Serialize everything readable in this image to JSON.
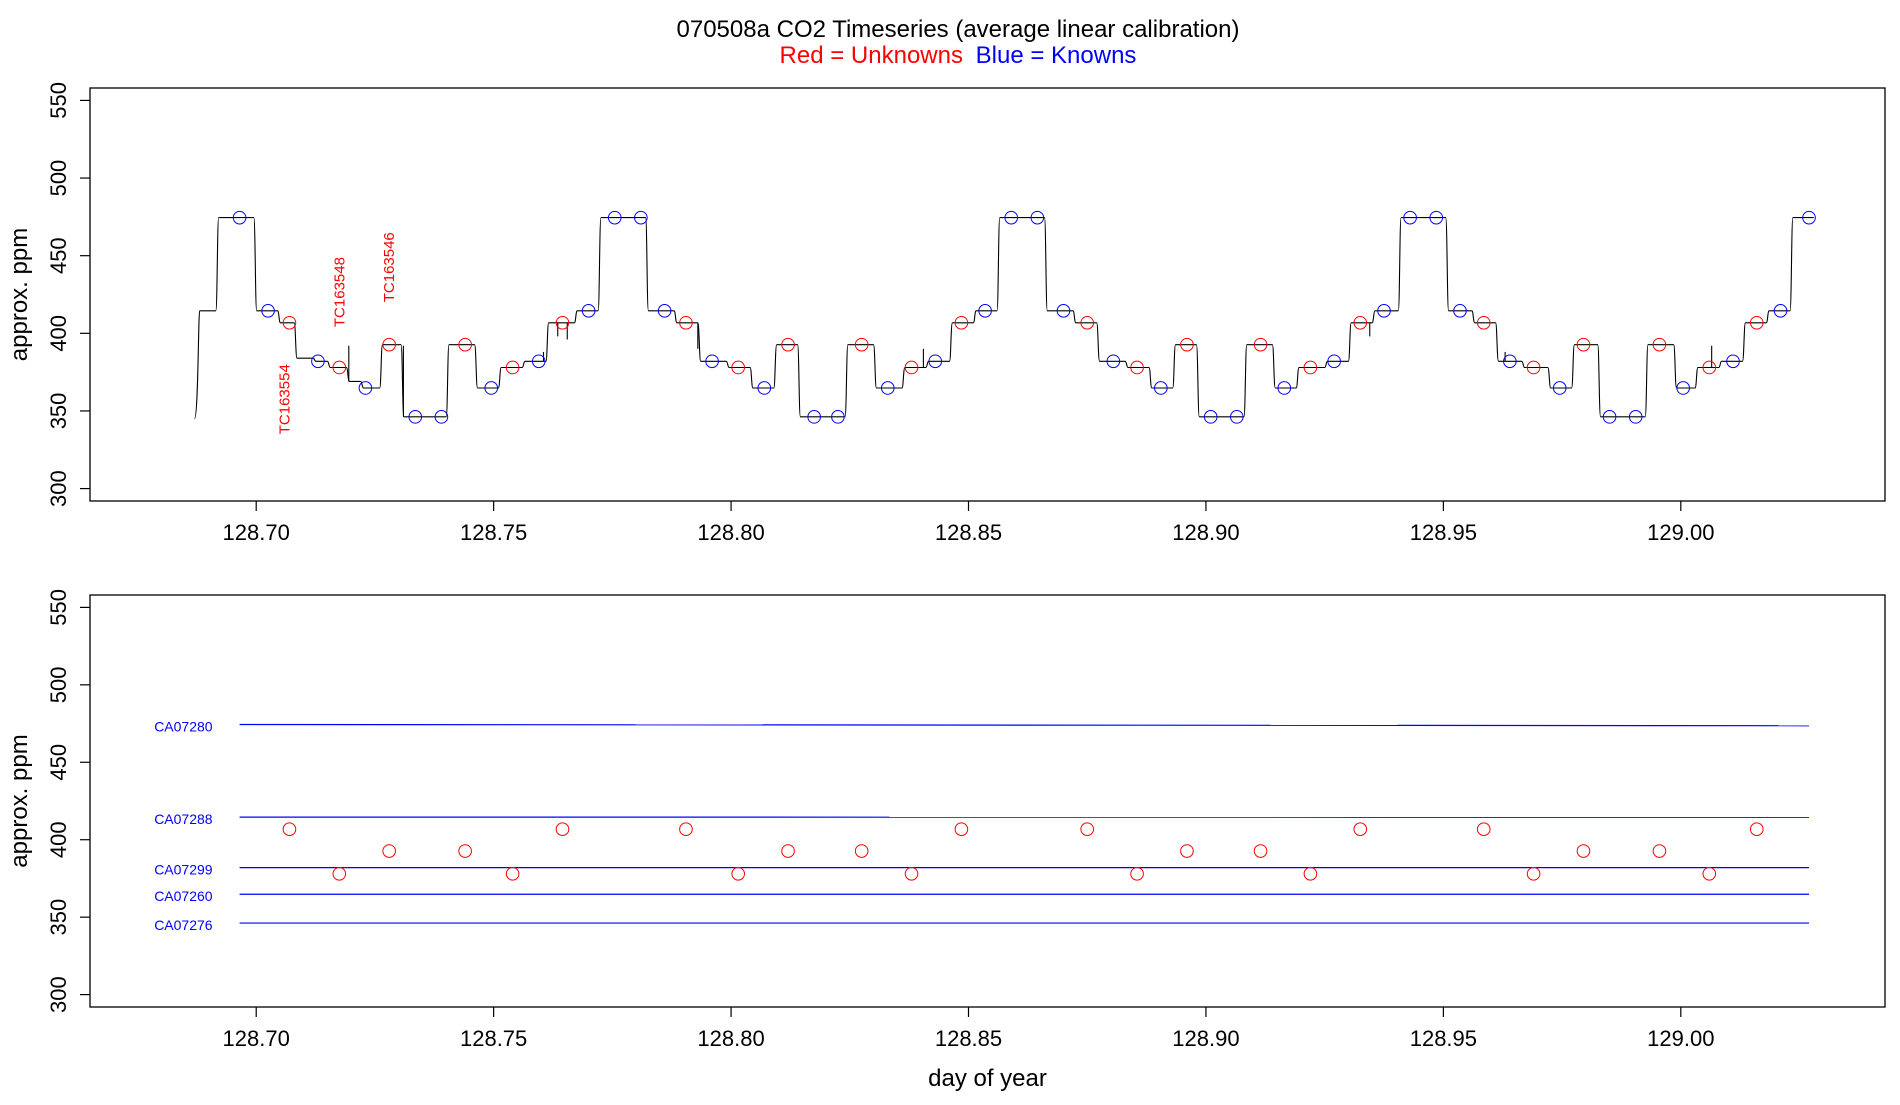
{
  "figure": {
    "title": "070508a   CO2 Timeseries (average linear calibration)",
    "subtitle_red": "Red = Unknowns",
    "subtitle_blue": "Blue = Knowns",
    "colors": {
      "unknowns": "#ff0000",
      "knowns": "#0000ff",
      "trace": "#000000",
      "frame": "#000000"
    }
  },
  "chart_data": [
    {
      "type": "line",
      "xlabel": "",
      "ylabel": "approx. ppm",
      "xlim": [
        128.665,
        129.043
      ],
      "ylim": [
        292,
        558
      ],
      "x_ticks": [
        "128.70",
        "128.75",
        "128.80",
        "128.85",
        "128.90",
        "128.95",
        "129.00"
      ],
      "y_ticks": [
        "300",
        "350",
        "400",
        "450",
        "500",
        "550"
      ],
      "grid": false,
      "trace_steps": [
        {
          "start": 128.6875,
          "end": 128.6915,
          "y": 414.5
        },
        {
          "start": 128.6915,
          "end": 128.6995,
          "y": 474.5
        },
        {
          "start": 128.6995,
          "end": 128.7045,
          "y": 414.5
        },
        {
          "start": 128.7045,
          "end": 128.708,
          "y": 406.8
        },
        {
          "start": 128.708,
          "end": 128.712,
          "y": 384.0
        },
        {
          "start": 128.712,
          "end": 128.715,
          "y": 382.0
        },
        {
          "start": 128.715,
          "end": 128.719,
          "y": 378.0
        },
        {
          "start": 128.719,
          "end": 128.722,
          "y": 369.0
        },
        {
          "start": 128.722,
          "end": 128.726,
          "y": 364.8
        },
        {
          "start": 128.726,
          "end": 128.7305,
          "y": 392.7
        },
        {
          "start": 128.7305,
          "end": 128.74,
          "y": 346.2
        },
        {
          "start": 128.74,
          "end": 128.746,
          "y": 392.7
        },
        {
          "start": 128.746,
          "end": 128.751,
          "y": 364.8
        },
        {
          "start": 128.751,
          "end": 128.756,
          "y": 378.0
        },
        {
          "start": 128.756,
          "end": 128.761,
          "y": 382.0
        },
        {
          "start": 128.761,
          "end": 128.767,
          "y": 406.8
        },
        {
          "start": 128.767,
          "end": 128.772,
          "y": 414.5
        },
        {
          "start": 128.772,
          "end": 128.782,
          "y": 474.5
        },
        {
          "start": 128.782,
          "end": 128.788,
          "y": 414.5
        },
        {
          "start": 128.788,
          "end": 128.793,
          "y": 406.8
        },
        {
          "start": 128.793,
          "end": 128.799,
          "y": 382.0
        },
        {
          "start": 128.799,
          "end": 128.804,
          "y": 378.0
        },
        {
          "start": 128.804,
          "end": 128.809,
          "y": 364.8
        },
        {
          "start": 128.809,
          "end": 128.814,
          "y": 392.7
        },
        {
          "start": 128.814,
          "end": 128.824,
          "y": 346.2
        },
        {
          "start": 128.824,
          "end": 128.83,
          "y": 392.7
        },
        {
          "start": 128.83,
          "end": 128.836,
          "y": 364.8
        },
        {
          "start": 128.836,
          "end": 128.841,
          "y": 378.0
        },
        {
          "start": 128.841,
          "end": 128.846,
          "y": 382.0
        },
        {
          "start": 128.846,
          "end": 128.851,
          "y": 406.8
        },
        {
          "start": 128.851,
          "end": 128.856,
          "y": 414.5
        },
        {
          "start": 128.856,
          "end": 128.866,
          "y": 474.5
        },
        {
          "start": 128.866,
          "end": 128.872,
          "y": 414.5
        },
        {
          "start": 128.872,
          "end": 128.877,
          "y": 406.8
        },
        {
          "start": 128.877,
          "end": 128.883,
          "y": 382.0
        },
        {
          "start": 128.883,
          "end": 128.888,
          "y": 378.0
        },
        {
          "start": 128.888,
          "end": 128.893,
          "y": 364.8
        },
        {
          "start": 128.893,
          "end": 128.898,
          "y": 392.7
        },
        {
          "start": 128.898,
          "end": 128.908,
          "y": 346.2
        },
        {
          "start": 128.908,
          "end": 128.914,
          "y": 392.7
        },
        {
          "start": 128.914,
          "end": 128.919,
          "y": 364.8
        },
        {
          "start": 128.919,
          "end": 128.925,
          "y": 378.0
        },
        {
          "start": 128.925,
          "end": 128.93,
          "y": 382.0
        },
        {
          "start": 128.93,
          "end": 128.935,
          "y": 406.8
        },
        {
          "start": 128.935,
          "end": 128.9405,
          "y": 414.5
        },
        {
          "start": 128.9405,
          "end": 128.9505,
          "y": 474.5
        },
        {
          "start": 128.9505,
          "end": 128.956,
          "y": 414.5
        },
        {
          "start": 128.956,
          "end": 128.961,
          "y": 406.8
        },
        {
          "start": 128.961,
          "end": 128.9665,
          "y": 382.0
        },
        {
          "start": 128.9665,
          "end": 128.972,
          "y": 378.0
        },
        {
          "start": 128.972,
          "end": 128.977,
          "y": 364.8
        },
        {
          "start": 128.977,
          "end": 128.9825,
          "y": 392.7
        },
        {
          "start": 128.9825,
          "end": 128.9925,
          "y": 346.2
        },
        {
          "start": 128.9925,
          "end": 128.9985,
          "y": 392.7
        },
        {
          "start": 128.9985,
          "end": 129.003,
          "y": 364.8
        },
        {
          "start": 129.003,
          "end": 129.008,
          "y": 378.0
        },
        {
          "start": 129.008,
          "end": 129.013,
          "y": 382.0
        },
        {
          "start": 129.013,
          "end": 129.018,
          "y": 406.8
        },
        {
          "start": 129.018,
          "end": 129.023,
          "y": 414.5
        },
        {
          "start": 129.023,
          "end": 129.028,
          "y": 474.5
        }
      ],
      "trace_start": {
        "x": 128.687,
        "y": 345.0
      },
      "spikes": [
        {
          "x": 128.7195,
          "y": 392
        },
        {
          "x": 128.731,
          "y": 392
        },
        {
          "x": 128.7605,
          "y": 388
        },
        {
          "x": 128.7635,
          "y": 398
        },
        {
          "x": 128.7655,
          "y": 396
        },
        {
          "x": 128.793,
          "y": 390
        },
        {
          "x": 128.8405,
          "y": 390
        },
        {
          "x": 128.9345,
          "y": 398
        },
        {
          "x": 128.963,
          "y": 388
        },
        {
          "x": 129.0065,
          "y": 392
        }
      ],
      "knowns": [
        {
          "x": 128.6965,
          "y": 474.5
        },
        {
          "x": 128.7025,
          "y": 414.5
        },
        {
          "x": 128.713,
          "y": 382.0
        },
        {
          "x": 128.723,
          "y": 364.8
        },
        {
          "x": 128.7335,
          "y": 346.2
        },
        {
          "x": 128.739,
          "y": 346.2
        },
        {
          "x": 128.7495,
          "y": 364.8
        },
        {
          "x": 128.7595,
          "y": 382.0
        },
        {
          "x": 128.77,
          "y": 414.5
        },
        {
          "x": 128.7755,
          "y": 474.5
        },
        {
          "x": 128.781,
          "y": 474.5
        },
        {
          "x": 128.786,
          "y": 414.5
        },
        {
          "x": 128.796,
          "y": 382.0
        },
        {
          "x": 128.807,
          "y": 364.8
        },
        {
          "x": 128.8175,
          "y": 346.2
        },
        {
          "x": 128.8225,
          "y": 346.2
        },
        {
          "x": 128.833,
          "y": 364.8
        },
        {
          "x": 128.843,
          "y": 382.0
        },
        {
          "x": 128.8535,
          "y": 414.5
        },
        {
          "x": 128.859,
          "y": 474.5
        },
        {
          "x": 128.8645,
          "y": 474.5
        },
        {
          "x": 128.87,
          "y": 414.5
        },
        {
          "x": 128.8805,
          "y": 382.0
        },
        {
          "x": 128.8905,
          "y": 364.8
        },
        {
          "x": 128.901,
          "y": 346.2
        },
        {
          "x": 128.9065,
          "y": 346.2
        },
        {
          "x": 128.9165,
          "y": 364.8
        },
        {
          "x": 128.927,
          "y": 382.0
        },
        {
          "x": 128.9375,
          "y": 414.5
        },
        {
          "x": 128.943,
          "y": 474.5
        },
        {
          "x": 128.9485,
          "y": 474.5
        },
        {
          "x": 128.9535,
          "y": 414.5
        },
        {
          "x": 128.964,
          "y": 382.0
        },
        {
          "x": 128.9745,
          "y": 364.8
        },
        {
          "x": 128.985,
          "y": 346.2
        },
        {
          "x": 128.9905,
          "y": 346.2
        },
        {
          "x": 129.0005,
          "y": 364.8
        },
        {
          "x": 129.011,
          "y": 382.0
        },
        {
          "x": 129.021,
          "y": 414.5
        },
        {
          "x": 129.027,
          "y": 474.5
        }
      ],
      "unknowns": [
        {
          "x": 128.707,
          "y": 406.8
        },
        {
          "x": 128.7175,
          "y": 378.0
        },
        {
          "x": 128.728,
          "y": 392.7
        },
        {
          "x": 128.744,
          "y": 392.7
        },
        {
          "x": 128.754,
          "y": 378.0
        },
        {
          "x": 128.7645,
          "y": 406.8
        },
        {
          "x": 128.7905,
          "y": 406.8
        },
        {
          "x": 128.8015,
          "y": 378.0
        },
        {
          "x": 128.812,
          "y": 392.7
        },
        {
          "x": 128.8275,
          "y": 392.7
        },
        {
          "x": 128.838,
          "y": 378.0
        },
        {
          "x": 128.8485,
          "y": 406.8
        },
        {
          "x": 128.875,
          "y": 406.8
        },
        {
          "x": 128.8855,
          "y": 378.0
        },
        {
          "x": 128.896,
          "y": 392.7
        },
        {
          "x": 128.9115,
          "y": 392.7
        },
        {
          "x": 128.922,
          "y": 378.0
        },
        {
          "x": 128.9325,
          "y": 406.8
        },
        {
          "x": 128.9585,
          "y": 406.8
        },
        {
          "x": 128.969,
          "y": 378.0
        },
        {
          "x": 128.9795,
          "y": 392.7
        },
        {
          "x": 128.9955,
          "y": 392.7
        },
        {
          "x": 129.006,
          "y": 378.0
        },
        {
          "x": 129.016,
          "y": 406.8
        }
      ],
      "annotations": [
        {
          "text": "TC163554",
          "x": 128.706,
          "y": 335
        },
        {
          "text": "TC163548",
          "x": 128.7175,
          "y": 404
        },
        {
          "text": "TC163546",
          "x": 128.728,
          "y": 420
        }
      ]
    },
    {
      "type": "scatter",
      "xlabel": "day of year",
      "ylabel": "approx. ppm",
      "xlim": [
        128.665,
        129.043
      ],
      "ylim": [
        292,
        558
      ],
      "x_ticks": [
        "128.70",
        "128.75",
        "128.80",
        "128.85",
        "128.90",
        "128.95",
        "129.00"
      ],
      "y_ticks": [
        "300",
        "350",
        "400",
        "450",
        "500",
        "550"
      ],
      "grid": false,
      "reference_lines": [
        {
          "name": "CA07280",
          "x0": 128.6965,
          "x1": 129.027,
          "y0": 474.4,
          "y1": 473.6
        },
        {
          "name": "CA07288",
          "x0": 128.6965,
          "x1": 129.027,
          "y0": 414.6,
          "y1": 414.5
        },
        {
          "name": "CA07299",
          "x0": 128.6965,
          "x1": 129.027,
          "y0": 382.0,
          "y1": 382.0
        },
        {
          "name": "CA07260",
          "x0": 128.6965,
          "x1": 129.027,
          "y0": 364.8,
          "y1": 364.8
        },
        {
          "name": "CA07276",
          "x0": 128.6965,
          "x1": 129.027,
          "y0": 346.2,
          "y1": 346.2
        }
      ],
      "unknowns": [
        {
          "x": 128.707,
          "y": 406.8
        },
        {
          "x": 128.7175,
          "y": 378.0
        },
        {
          "x": 128.728,
          "y": 392.7
        },
        {
          "x": 128.744,
          "y": 392.7
        },
        {
          "x": 128.754,
          "y": 378.0
        },
        {
          "x": 128.7645,
          "y": 406.8
        },
        {
          "x": 128.7905,
          "y": 406.8
        },
        {
          "x": 128.8015,
          "y": 378.0
        },
        {
          "x": 128.812,
          "y": 392.7
        },
        {
          "x": 128.8275,
          "y": 392.7
        },
        {
          "x": 128.838,
          "y": 378.0
        },
        {
          "x": 128.8485,
          "y": 406.8
        },
        {
          "x": 128.875,
          "y": 406.8
        },
        {
          "x": 128.8855,
          "y": 378.0
        },
        {
          "x": 128.896,
          "y": 392.7
        },
        {
          "x": 128.9115,
          "y": 392.7
        },
        {
          "x": 128.922,
          "y": 378.0
        },
        {
          "x": 128.9325,
          "y": 406.8
        },
        {
          "x": 128.9585,
          "y": 406.8
        },
        {
          "x": 128.969,
          "y": 378.0
        },
        {
          "x": 128.9795,
          "y": 392.7
        },
        {
          "x": 128.9955,
          "y": 392.7
        },
        {
          "x": 129.006,
          "y": 378.0
        },
        {
          "x": 129.016,
          "y": 406.8
        }
      ]
    }
  ]
}
